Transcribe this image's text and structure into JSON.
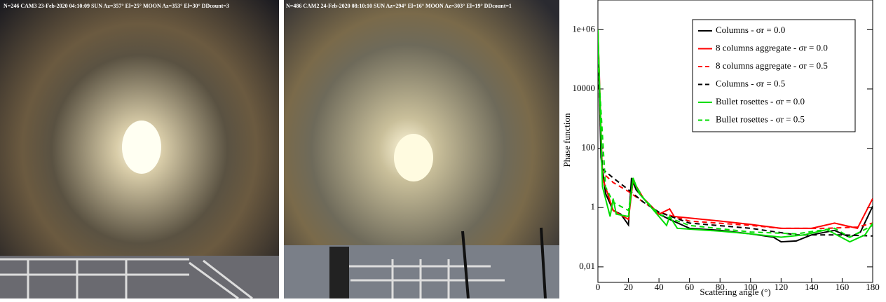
{
  "photos": [
    {
      "caption": "N=246 CAM3 23-Feb-2020 04:10:09 SUN Az=357° El=25°  MOON Az=353° El=30°  DDcount=3"
    },
    {
      "caption": "N=486 CAM2 24-Feb-2020 08:10:10 SUN Az=294° El=16°  MOON Az=303° El=19°  DDcount=1"
    }
  ],
  "chart_data": {
    "type": "line",
    "xlabel": "Scattering angle (°)",
    "ylabel": "Phase function",
    "xlim": [
      0,
      180
    ],
    "xticks": [
      0,
      20,
      40,
      60,
      80,
      100,
      120,
      140,
      160,
      180
    ],
    "ylim": [
      0.003,
      10000000
    ],
    "yscale": "log",
    "yticks": [
      {
        "value": 0.01,
        "label": "0,01"
      },
      1,
      100,
      10000,
      {
        "value": 1000000,
        "label": "1e+06"
      }
    ],
    "legend": "upper right",
    "series": [
      {
        "name": "Columns - σr = 0.0",
        "color": "#000000",
        "dash": false,
        "x": [
          0,
          2,
          5,
          10,
          15,
          20,
          22,
          25,
          30,
          40,
          47,
          60,
          80,
          100,
          115,
          120,
          130,
          140,
          155,
          165,
          172,
          180
        ],
        "values": [
          1000000,
          50,
          3,
          0.8,
          0.6,
          0.26,
          10,
          4,
          2,
          0.6,
          0.4,
          0.2,
          0.17,
          0.13,
          0.1,
          0.07,
          0.075,
          0.12,
          0.17,
          0.1,
          0.15,
          1.1
        ]
      },
      {
        "name": "8 columns aggregate - σr = 0.0",
        "color": "#ff0000",
        "dash": false,
        "x": [
          0,
          3,
          10,
          20,
          23,
          30,
          40,
          47,
          50,
          80,
          100,
          120,
          140,
          155,
          170,
          180
        ],
        "values": [
          1000000,
          10,
          0.8,
          0.4,
          8,
          2,
          0.6,
          0.9,
          0.5,
          0.35,
          0.27,
          0.2,
          0.2,
          0.3,
          0.2,
          2
        ]
      },
      {
        "name": "8 columns aggregate - σr = 0.5",
        "color": "#ff0000",
        "dash": true,
        "x": [
          0,
          3,
          10,
          20,
          30,
          40,
          60,
          100,
          120,
          150,
          170,
          180
        ],
        "values": [
          100000,
          15,
          7,
          3.5,
          1.5,
          0.7,
          0.35,
          0.25,
          0.2,
          0.2,
          0.22,
          0.3
        ]
      },
      {
        "name": "Columns - σr = 0.5",
        "color": "#000000",
        "dash": true,
        "x": [
          0,
          3,
          10,
          20,
          30,
          40,
          60,
          100,
          130,
          160,
          180
        ],
        "values": [
          100000,
          20,
          10,
          4,
          1.5,
          0.7,
          0.3,
          0.2,
          0.12,
          0.12,
          0.11
        ]
      },
      {
        "name": "Bullet rosettes - σr = 0.0",
        "color": "#00dd00",
        "dash": false,
        "x": [
          0,
          3,
          8,
          10,
          12,
          20,
          23,
          27,
          35,
          45,
          47,
          52,
          80,
          100,
          120,
          135,
          150,
          165,
          175,
          180
        ],
        "values": [
          1000000,
          5,
          0.5,
          2,
          0.6,
          0.5,
          10,
          3,
          1,
          0.25,
          0.5,
          0.2,
          0.16,
          0.13,
          0.1,
          0.12,
          0.18,
          0.07,
          0.12,
          0.3
        ]
      },
      {
        "name": "Bullet rosettes - σr = 0.5",
        "color": "#00dd00",
        "dash": true,
        "x": [
          0,
          5,
          10,
          20,
          23,
          30,
          40,
          60,
          100,
          130,
          155,
          165,
          180
        ],
        "values": [
          100000,
          5,
          1.5,
          0.8,
          8,
          2,
          0.6,
          0.25,
          0.15,
          0.13,
          0.2,
          0.1,
          0.25
        ]
      }
    ]
  }
}
